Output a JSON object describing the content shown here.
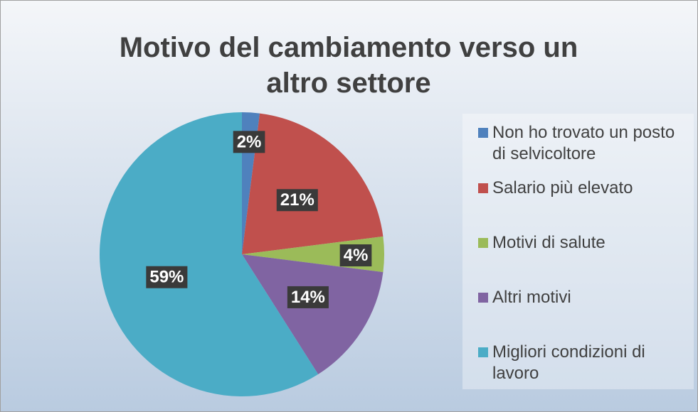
{
  "chart_data": {
    "type": "pie",
    "title": "Motivo del cambiamento verso un altro settore",
    "categories": [
      "Non ho trovato un posto di selvicoltore",
      "Salario più elevato",
      "Motivi di salute",
      "Altri motivi",
      "Migliori condizioni di lavoro"
    ],
    "values": [
      2,
      21,
      4,
      14,
      59
    ],
    "value_labels": [
      "2%",
      "21%",
      "4%",
      "14%",
      "59%"
    ],
    "colors": [
      "#4f81bd",
      "#c0504d",
      "#9bbb59",
      "#8064a2",
      "#4bacc6"
    ],
    "legend": "right"
  }
}
